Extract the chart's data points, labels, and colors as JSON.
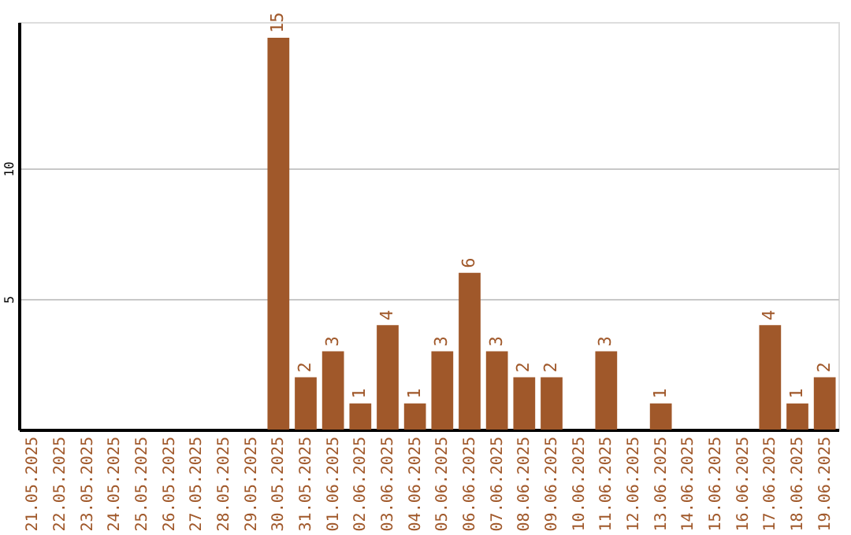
{
  "chart_data": {
    "type": "bar",
    "categories": [
      "21.05.2025",
      "22.05.2025",
      "23.05.2025",
      "24.05.2025",
      "25.05.2025",
      "26.05.2025",
      "27.05.2025",
      "28.05.2025",
      "29.05.2025",
      "30.05.2025",
      "31.05.2025",
      "01.06.2025",
      "02.06.2025",
      "03.06.2025",
      "04.06.2025",
      "05.06.2025",
      "06.06.2025",
      "07.06.2025",
      "08.06.2025",
      "09.06.2025",
      "10.06.2025",
      "11.06.2025",
      "12.06.2025",
      "13.06.2025",
      "14.06.2025",
      "15.06.2025",
      "16.06.2025",
      "17.06.2025",
      "18.06.2025",
      "19.06.2025"
    ],
    "values": [
      0,
      0,
      0,
      0,
      0,
      0,
      0,
      0,
      0,
      15,
      2,
      3,
      1,
      4,
      1,
      3,
      6,
      3,
      2,
      2,
      0,
      3,
      0,
      1,
      0,
      0,
      0,
      4,
      1,
      2
    ],
    "value_labels": [
      null,
      null,
      null,
      null,
      null,
      null,
      null,
      null,
      null,
      "15",
      "2",
      "3",
      "1",
      "4",
      "1",
      "3",
      "6",
      "3",
      "2",
      "2",
      null,
      "3",
      null,
      "1",
      null,
      null,
      null,
      "4",
      "1",
      "2"
    ],
    "color": "#a0582a",
    "ylim": [
      0,
      15.6
    ],
    "yticks": [
      5,
      10
    ],
    "grid": "y"
  }
}
